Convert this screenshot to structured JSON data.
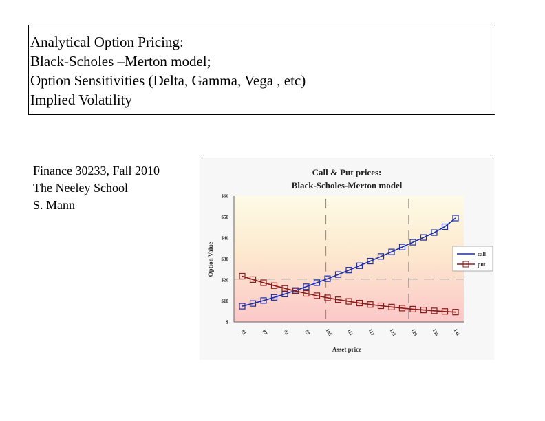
{
  "title_lines": [
    "Analytical Option Pricing:",
    "Black-Scholes –Merton model;",
    "Option Sensitivities (Delta, Gamma, Vega , etc)",
    "Implied Volatility"
  ],
  "credits": [
    "Finance 30233, Fall 2010",
    "The Neeley School",
    "S. Mann"
  ],
  "chart_data": {
    "type": "line",
    "title": [
      "Call & Put prices:",
      "Black-Scholes-Merton model"
    ],
    "xlabel": "Asset price",
    "ylabel": "Option Value",
    "y_ticks": [
      "$60",
      "$50",
      "$40",
      "$30",
      "$20",
      "$10",
      "$"
    ],
    "ylim": [
      0,
      60
    ],
    "x_tick_labels": [
      "81",
      "87",
      "93",
      "99",
      "105",
      "111",
      "117",
      "123",
      "129",
      "135",
      "141"
    ],
    "x": [
      81,
      84,
      87,
      90,
      93,
      96,
      99,
      102,
      105,
      108,
      111,
      114,
      117,
      120,
      123,
      126,
      129,
      132,
      135,
      138,
      141
    ],
    "series": [
      {
        "name": "call",
        "color": "#1c2fa8",
        "values": [
          7.5,
          8.8,
          10.2,
          11.7,
          13.3,
          15.0,
          16.8,
          18.7,
          20.6,
          22.6,
          24.7,
          26.8,
          29.0,
          31.2,
          33.4,
          35.7,
          38.0,
          40.3,
          42.6,
          45.4,
          49.5
        ]
      },
      {
        "name": "put",
        "color": "#8b1a1a",
        "values": [
          21.8,
          20.2,
          18.7,
          17.3,
          16.0,
          14.7,
          13.6,
          12.5,
          11.5,
          10.6,
          9.8,
          9.0,
          8.3,
          7.7,
          7.1,
          6.6,
          6.1,
          5.7,
          5.3,
          5.0,
          4.7
        ]
      }
    ],
    "legend_position": "right"
  }
}
